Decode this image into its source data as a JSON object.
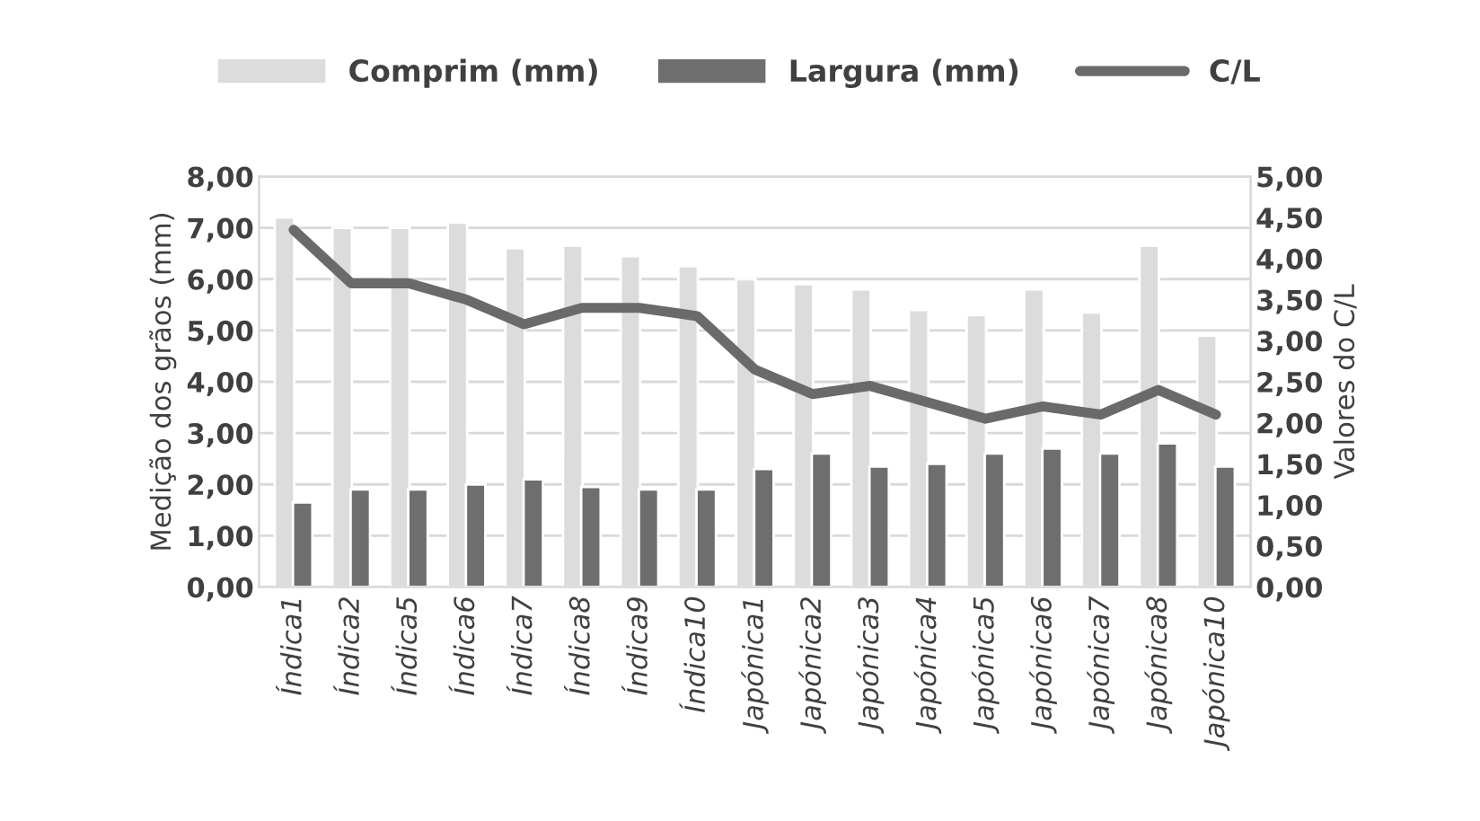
{
  "chart_data": {
    "type": "bar",
    "categories": [
      "Índica1",
      "Índica2",
      "Índica5",
      "Índica6",
      "Índica7",
      "Índica8",
      "Índica9",
      "Índica10",
      "Japónica1",
      "Japónica2",
      "Japónica3",
      "Japónica4",
      "Japónica5",
      "Japónica6",
      "Japónica7",
      "Japónica8",
      "Japónica10"
    ],
    "series": [
      {
        "name": "Comprim (mm)",
        "color": "#dcdcdc",
        "values": [
          7.2,
          7.0,
          7.0,
          7.1,
          6.6,
          6.65,
          6.45,
          6.25,
          6.0,
          5.9,
          5.8,
          5.4,
          5.3,
          5.8,
          5.35,
          6.65,
          4.9
        ]
      },
      {
        "name": "Largura (mm)",
        "color": "#6e6e6e",
        "values": [
          1.65,
          1.9,
          1.9,
          2.0,
          2.1,
          1.95,
          1.9,
          1.9,
          2.3,
          2.6,
          2.35,
          2.4,
          2.6,
          2.7,
          2.6,
          2.8,
          2.35
        ]
      },
      {
        "name": "C/L",
        "type": "line",
        "axis": "y2",
        "color": "#6a6a6a",
        "values": [
          4.35,
          3.7,
          3.7,
          3.5,
          3.2,
          3.4,
          3.4,
          3.3,
          2.65,
          2.35,
          2.45,
          2.25,
          2.05,
          2.2,
          2.1,
          2.4,
          2.1
        ]
      }
    ],
    "ylabel": "Medição dos grãos (mm)",
    "y2label": "Valores do C/L",
    "ylim": [
      0,
      8
    ],
    "yticks": [
      {
        "value": 0,
        "label": "0,00"
      },
      {
        "value": 1,
        "label": "1,00"
      },
      {
        "value": 2,
        "label": "2,00"
      },
      {
        "value": 3,
        "label": "3,00"
      },
      {
        "value": 4,
        "label": "4,00"
      },
      {
        "value": 5,
        "label": "5,00"
      },
      {
        "value": 6,
        "label": "6,00"
      },
      {
        "value": 7,
        "label": "7,00"
      },
      {
        "value": 8,
        "label": "8,00"
      }
    ],
    "y2lim": [
      0,
      5
    ],
    "y2ticks": [
      {
        "value": 0,
        "label": "0,00"
      },
      {
        "value": 0.5,
        "label": "0,50"
      },
      {
        "value": 1,
        "label": "1,00"
      },
      {
        "value": 1.5,
        "label": "1,50"
      },
      {
        "value": 2,
        "label": "2,00"
      },
      {
        "value": 2.5,
        "label": "2,50"
      },
      {
        "value": 3,
        "label": "3,00"
      },
      {
        "value": 3.5,
        "label": "3,50"
      },
      {
        "value": 4,
        "label": "4,00"
      },
      {
        "value": 4.5,
        "label": "4,50"
      },
      {
        "value": 5,
        "label": "5,00"
      }
    ],
    "grid": "y",
    "legend": "top",
    "marker": "none",
    "line_style": "solid"
  }
}
